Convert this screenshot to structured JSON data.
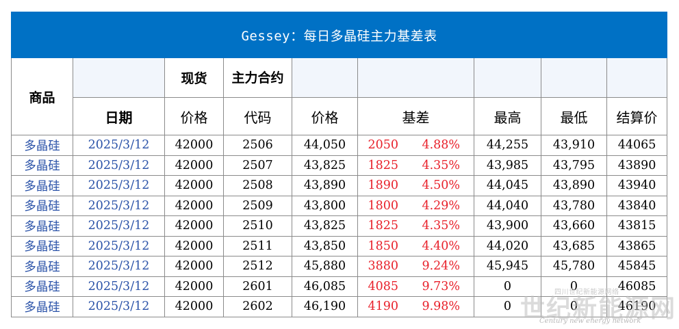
{
  "title": "Gessey：每日多晶硅主力基差表",
  "header_row1": {
    "product": "商品",
    "spot": "现货",
    "main_contract": "主力合约"
  },
  "header_row2": {
    "date": "日期",
    "price": "价格",
    "code": "代码",
    "contract_price": "价格",
    "basis": "基差",
    "high": "最高",
    "low": "最低",
    "settle": "结算价"
  },
  "rows": [
    {
      "product": "多晶硅",
      "date": "2025/3/12",
      "spot": "42000",
      "code": "2506",
      "price": "44,050",
      "basis": "2050",
      "pct": "4.88%",
      "high": "44,255",
      "low": "43,910",
      "settle": "44065"
    },
    {
      "product": "多晶硅",
      "date": "2025/3/12",
      "spot": "42000",
      "code": "2507",
      "price": "43,825",
      "basis": "1825",
      "pct": "4.35%",
      "high": "43,985",
      "low": "43,795",
      "settle": "43890"
    },
    {
      "product": "多晶硅",
      "date": "2025/3/12",
      "spot": "42000",
      "code": "2508",
      "price": "43,890",
      "basis": "1890",
      "pct": "4.50%",
      "high": "44,045",
      "low": "43,890",
      "settle": "43940"
    },
    {
      "product": "多晶硅",
      "date": "2025/3/12",
      "spot": "42000",
      "code": "2509",
      "price": "43,800",
      "basis": "1800",
      "pct": "4.29%",
      "high": "44,040",
      "low": "43,780",
      "settle": "43840"
    },
    {
      "product": "多晶硅",
      "date": "2025/3/12",
      "spot": "42000",
      "code": "2510",
      "price": "43,825",
      "basis": "1825",
      "pct": "4.35%",
      "high": "43,900",
      "low": "43,660",
      "settle": "43815"
    },
    {
      "product": "多晶硅",
      "date": "2025/3/12",
      "spot": "42000",
      "code": "2511",
      "price": "43,850",
      "basis": "1850",
      "pct": "4.40%",
      "high": "44,020",
      "low": "43,685",
      "settle": "43865"
    },
    {
      "product": "多晶硅",
      "date": "2025/3/12",
      "spot": "42000",
      "code": "2512",
      "price": "45,880",
      "basis": "3880",
      "pct": "9.24%",
      "high": "45,945",
      "low": "45,780",
      "settle": "45845"
    },
    {
      "product": "多晶硅",
      "date": "2025/3/12",
      "spot": "42000",
      "code": "2601",
      "price": "46,085",
      "basis": "4085",
      "pct": "9.73%",
      "high": "0",
      "low": "0",
      "settle": "46085"
    },
    {
      "product": "多晶硅",
      "date": "2025/3/12",
      "spot": "42000",
      "code": "2602",
      "price": "46,190",
      "basis": "4190",
      "pct": "9.98%",
      "high": "0",
      "low": "0",
      "settle": "46190"
    }
  ],
  "watermark": {
    "small": "四川世纪新能源网络",
    "big": "世纪新能源网",
    "english": "Century new energy network"
  },
  "colors": {
    "title_bg": "#0071c5",
    "header_blank_bg": "#f2f6fc",
    "link_blue": "#2a52a8",
    "basis_red": "#e8202a"
  }
}
